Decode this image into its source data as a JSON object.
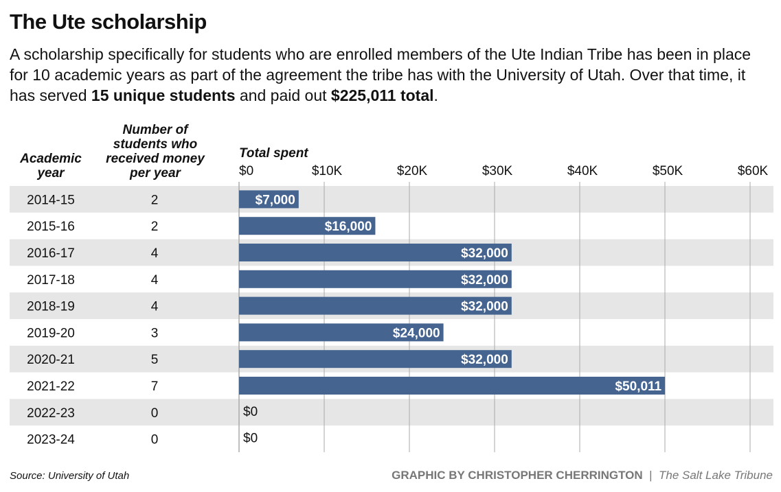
{
  "title": "The Ute scholarship",
  "subtitle_parts": [
    "A scholarship specifically for students who are enrolled members of the Ute Indian Tribe has been in place for 10 academic years as part of the agreement the tribe has with the University of Utah. Over that time, it has served ",
    "15 unique students",
    " and paid out ",
    "$225,011 total",
    "."
  ],
  "source": "Source: University of Utah",
  "credit": "GRAPHIC BY CHRISTOPHER CHERRINGTON",
  "separator": "|",
  "publisher": "The Salt Lake Tribune",
  "colors": {
    "bar": "#45648f",
    "row_alt": "#e6e6e6",
    "grid": "#aaaaaa"
  },
  "chart_data": {
    "type": "bar",
    "orientation": "horizontal",
    "column_headers": {
      "year": "Academic year",
      "students": "Number of students who received money per year",
      "spent": "Total spent"
    },
    "categories": [
      "2014-15",
      "2015-16",
      "2016-17",
      "2017-18",
      "2018-19",
      "2019-20",
      "2020-21",
      "2021-22",
      "2022-23",
      "2023-24"
    ],
    "students": [
      2,
      2,
      4,
      4,
      4,
      3,
      5,
      7,
      0,
      0
    ],
    "values": [
      7000,
      16000,
      32000,
      32000,
      32000,
      24000,
      32000,
      50011,
      0,
      0
    ],
    "data_labels": [
      "$7,000",
      "$16,000",
      "$32,000",
      "$32,000",
      "$32,000",
      "$24,000",
      "$32,000",
      "$50,011",
      "$0",
      "$0"
    ],
    "xlim": [
      0,
      60000
    ],
    "ticks": [
      0,
      10000,
      20000,
      30000,
      40000,
      50000,
      60000
    ],
    "tick_labels": [
      "$0",
      "$10K",
      "$20K",
      "$30K",
      "$40K",
      "$50K",
      "$60K"
    ],
    "grid": true
  }
}
